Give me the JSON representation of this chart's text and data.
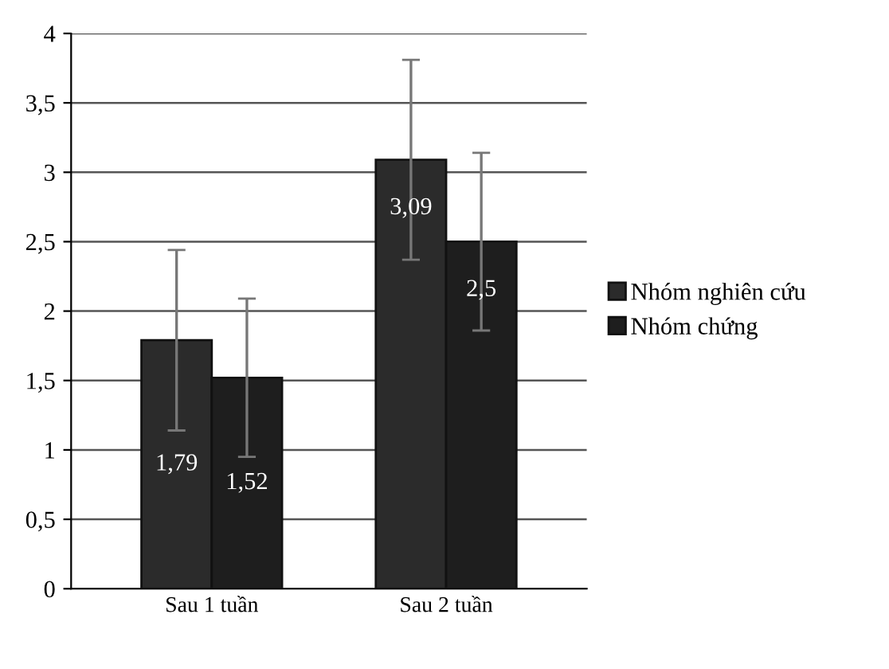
{
  "chart_data": {
    "type": "bar",
    "categories": [
      "Sau 1 tuần",
      "Sau 2 tuần"
    ],
    "series": [
      {
        "name": "Nhóm nghiên cứu",
        "color": "#2b2b2b",
        "values": [
          1.79,
          3.09
        ],
        "errors": [
          0.65,
          0.72
        ],
        "value_labels": [
          "1,79",
          "3,09"
        ]
      },
      {
        "name": "Nhóm chứng",
        "color": "#1e1e1e",
        "values": [
          1.52,
          2.5
        ],
        "errors": [
          0.57,
          0.64
        ],
        "value_labels": [
          "1,52",
          "2,5"
        ]
      }
    ],
    "ylim": [
      0,
      4
    ],
    "yticks": [
      0,
      {
        "value": 0.5,
        "label": "0,5"
      },
      1,
      {
        "value": 1.5,
        "label": "1,5"
      },
      2,
      {
        "value": 2.5,
        "label": "2,5"
      },
      3,
      {
        "value": 3.5,
        "label": "3,5"
      },
      4
    ],
    "grid": "y",
    "legend": "right"
  }
}
